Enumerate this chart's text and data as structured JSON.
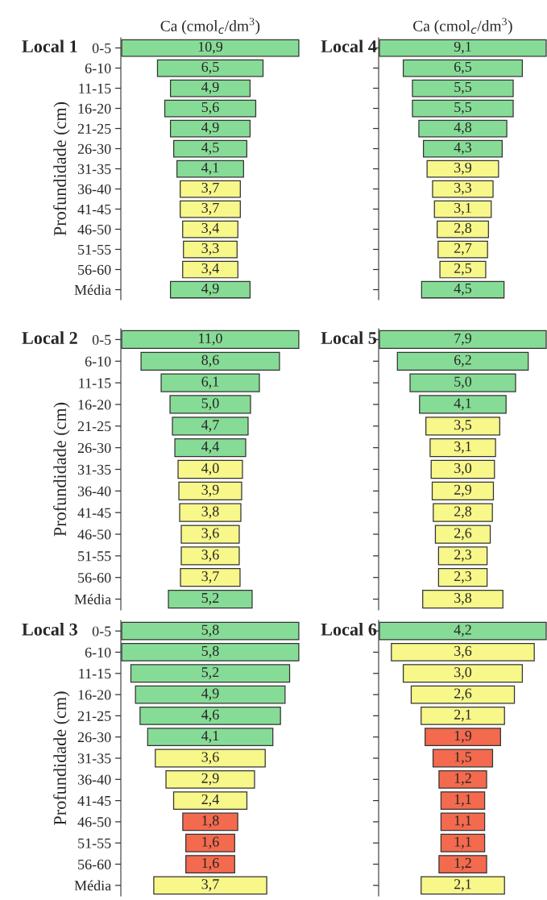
{
  "chart_data": [
    {
      "type": "other",
      "title": "Local 1",
      "xlabel": "Ca (cmol$_{c}$/dm$^{3}$)",
      "ylabel": "Profundidade (cm)",
      "categories": [
        "0-5",
        "6-10",
        "11-15",
        "16-20",
        "21-25",
        "26-30",
        "31-35",
        "36-40",
        "41-45",
        "46-50",
        "51-55",
        "56-60",
        "Média"
      ],
      "values": [
        10.9,
        6.5,
        4.9,
        5.6,
        4.9,
        4.5,
        4.1,
        3.7,
        3.7,
        3.4,
        3.3,
        3.4,
        4.9
      ],
      "value_labels": [
        "10,9",
        "6,5",
        "4,9",
        "5,6",
        "4,9",
        "4,5",
        "4,1",
        "3,7",
        "3,7",
        "3,4",
        "3,3",
        "3,4",
        "4,9"
      ],
      "colors": [
        "#86dc96",
        "#86dc96",
        "#86dc96",
        "#86dc96",
        "#86dc96",
        "#86dc96",
        "#86dc96",
        "#f7f78a",
        "#f7f78a",
        "#f7f78a",
        "#f7f78a",
        "#f7f78a",
        "#86dc96"
      ]
    },
    {
      "type": "other",
      "title": "Local 2",
      "ylabel": "Profundidade (cm)",
      "categories": [
        "0-5",
        "6-10",
        "11-15",
        "16-20",
        "21-25",
        "26-30",
        "31-35",
        "36-40",
        "41-45",
        "46-50",
        "51-55",
        "56-60",
        "Média"
      ],
      "values": [
        11.0,
        8.6,
        6.1,
        5.0,
        4.7,
        4.4,
        4.0,
        3.9,
        3.8,
        3.6,
        3.6,
        3.7,
        5.2
      ],
      "value_labels": [
        "11,0",
        "8,6",
        "6,1",
        "5,0",
        "4,7",
        "4,4",
        "4,0",
        "3,9",
        "3,8",
        "3,6",
        "3,6",
        "3,7",
        "5,2"
      ],
      "colors": [
        "#86dc96",
        "#86dc96",
        "#86dc96",
        "#86dc96",
        "#86dc96",
        "#86dc96",
        "#f7f78a",
        "#f7f78a",
        "#f7f78a",
        "#f7f78a",
        "#f7f78a",
        "#f7f78a",
        "#86dc96"
      ]
    },
    {
      "type": "other",
      "title": "Local 3",
      "ylabel": "Profundidade (cm)",
      "categories": [
        "0-5",
        "6-10",
        "11-15",
        "16-20",
        "21-25",
        "26-30",
        "31-35",
        "36-40",
        "41-45",
        "46-50",
        "51-55",
        "56-60",
        "Média"
      ],
      "values": [
        5.8,
        5.8,
        5.2,
        4.9,
        4.6,
        4.1,
        3.6,
        2.9,
        2.4,
        1.8,
        1.6,
        1.6,
        3.7
      ],
      "value_labels": [
        "5,8",
        "5,8",
        "5,2",
        "4,9",
        "4,6",
        "4,1",
        "3,6",
        "2,9",
        "2,4",
        "1,8",
        "1,6",
        "1,6",
        "3,7"
      ],
      "colors": [
        "#86dc96",
        "#86dc96",
        "#86dc96",
        "#86dc96",
        "#86dc96",
        "#86dc96",
        "#f7f78a",
        "#f7f78a",
        "#f7f78a",
        "#f46a4e",
        "#f46a4e",
        "#f46a4e",
        "#f7f78a"
      ]
    },
    {
      "type": "other",
      "title": "Local 4",
      "xlabel": "Ca (cmol$_{c}$/dm$^{3}$)",
      "categories": [
        null,
        null,
        null,
        null,
        null,
        null,
        null,
        null,
        null,
        null,
        null,
        null,
        null
      ],
      "values": [
        9.1,
        6.5,
        5.5,
        5.5,
        4.8,
        4.3,
        3.9,
        3.3,
        3.1,
        2.8,
        2.7,
        2.5,
        4.5
      ],
      "value_labels": [
        "9,1",
        "6,5",
        "5,5",
        "5,5",
        "4,8",
        "4,3",
        "3,9",
        "3,3",
        "3,1",
        "2,8",
        "2,7",
        "2,5",
        "4,5"
      ],
      "colors": [
        "#86dc96",
        "#86dc96",
        "#86dc96",
        "#86dc96",
        "#86dc96",
        "#86dc96",
        "#f7f78a",
        "#f7f78a",
        "#f7f78a",
        "#f7f78a",
        "#f7f78a",
        "#f7f78a",
        "#86dc96"
      ]
    },
    {
      "type": "other",
      "title": "Local 5",
      "categories": [
        null,
        null,
        null,
        null,
        null,
        null,
        null,
        null,
        null,
        null,
        null,
        null,
        null
      ],
      "values": [
        7.9,
        6.2,
        5.0,
        4.1,
        3.5,
        3.1,
        3.0,
        2.9,
        2.8,
        2.6,
        2.3,
        2.3,
        3.8
      ],
      "value_labels": [
        "7,9",
        "6,2",
        "5,0",
        "4,1",
        "3,5",
        "3,1",
        "3,0",
        "2,9",
        "2,8",
        "2,6",
        "2,3",
        "2,3",
        "3,8"
      ],
      "colors": [
        "#86dc96",
        "#86dc96",
        "#86dc96",
        "#86dc96",
        "#f7f78a",
        "#f7f78a",
        "#f7f78a",
        "#f7f78a",
        "#f7f78a",
        "#f7f78a",
        "#f7f78a",
        "#f7f78a",
        "#f7f78a"
      ]
    },
    {
      "type": "other",
      "title": "Local 6",
      "categories": [
        null,
        null,
        null,
        null,
        null,
        null,
        null,
        null,
        null,
        null,
        null,
        null,
        null
      ],
      "values": [
        4.2,
        3.6,
        3.0,
        2.6,
        2.1,
        1.9,
        1.5,
        1.2,
        1.1,
        1.1,
        1.1,
        1.2,
        2.1
      ],
      "value_labels": [
        "4,2",
        "3,6",
        "3,0",
        "2,6",
        "2,1",
        "1,9",
        "1,5",
        "1,2",
        "1,1",
        "1,1",
        "1,1",
        "1,2",
        "2,1"
      ],
      "colors": [
        "#86dc96",
        "#f7f78a",
        "#f7f78a",
        "#f7f78a",
        "#f7f78a",
        "#f46a4e",
        "#f46a4e",
        "#f46a4e",
        "#f46a4e",
        "#f46a4e",
        "#f46a4e",
        "#f46a4e",
        "#f7f78a"
      ]
    }
  ]
}
